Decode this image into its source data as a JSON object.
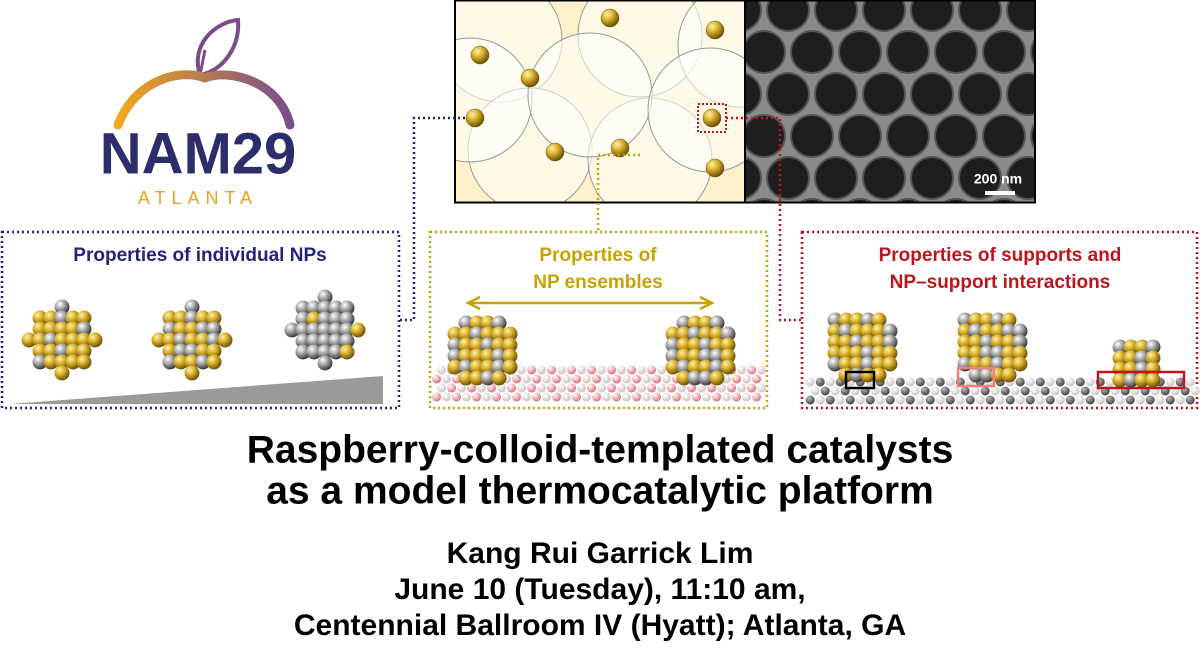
{
  "logo": {
    "name": "NAM29",
    "city": "ATLANTA"
  },
  "image": {
    "scale_bar": "200 nm"
  },
  "panels": [
    {
      "title": [
        "Properties of individual NPs"
      ]
    },
    {
      "title": [
        "Properties of",
        "NP ensembles"
      ]
    },
    {
      "title": [
        "Properties of supports and",
        "NP–support interactions"
      ]
    }
  ],
  "title": [
    "Raspberry-colloid-templated catalysts",
    "as a model thermocatalytic platform"
  ],
  "presenter": {
    "name": "Kang Rui Garrick Lim",
    "date": "June 10 (Tuesday), 11:10 am,",
    "location": "Centennial Ballroom IV (Hyatt); Atlanta, GA"
  }
}
